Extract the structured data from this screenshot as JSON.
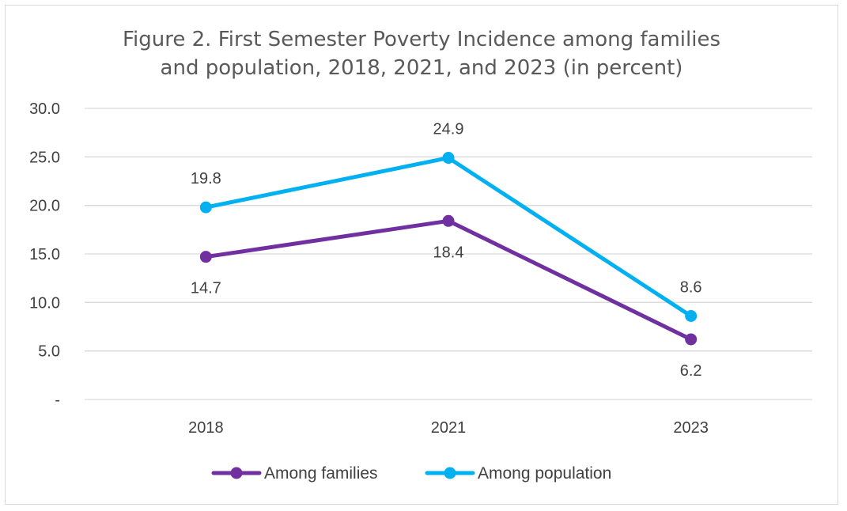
{
  "chart_data": {
    "type": "line",
    "title_lines": [
      "Figure 2. First Semester Poverty Incidence among families",
      "and population, 2018, 2021, and 2023 (in percent)"
    ],
    "categories": [
      "2018",
      "2021",
      "2023"
    ],
    "y_ticks": [
      {
        "value": 0,
        "label": "-"
      },
      {
        "value": 5,
        "label": "5.0"
      },
      {
        "value": 10,
        "label": "10.0"
      },
      {
        "value": 15,
        "label": "15.0"
      },
      {
        "value": 20,
        "label": "20.0"
      },
      {
        "value": 25,
        "label": "25.0"
      },
      {
        "value": 30,
        "label": "30.0"
      }
    ],
    "ylim": [
      0,
      30
    ],
    "grid": true,
    "legend_position": "bottom",
    "series": [
      {
        "name": "Among families",
        "color": "#7030a0",
        "values": [
          14.7,
          18.4,
          6.2
        ],
        "labels": [
          "14.7",
          "18.4",
          "6.2"
        ],
        "label_position": "below"
      },
      {
        "name": "Among population",
        "color": "#00b0f0",
        "values": [
          19.8,
          24.9,
          8.6
        ],
        "labels": [
          "19.8",
          "24.9",
          "8.6"
        ],
        "label_position": "above"
      }
    ]
  }
}
